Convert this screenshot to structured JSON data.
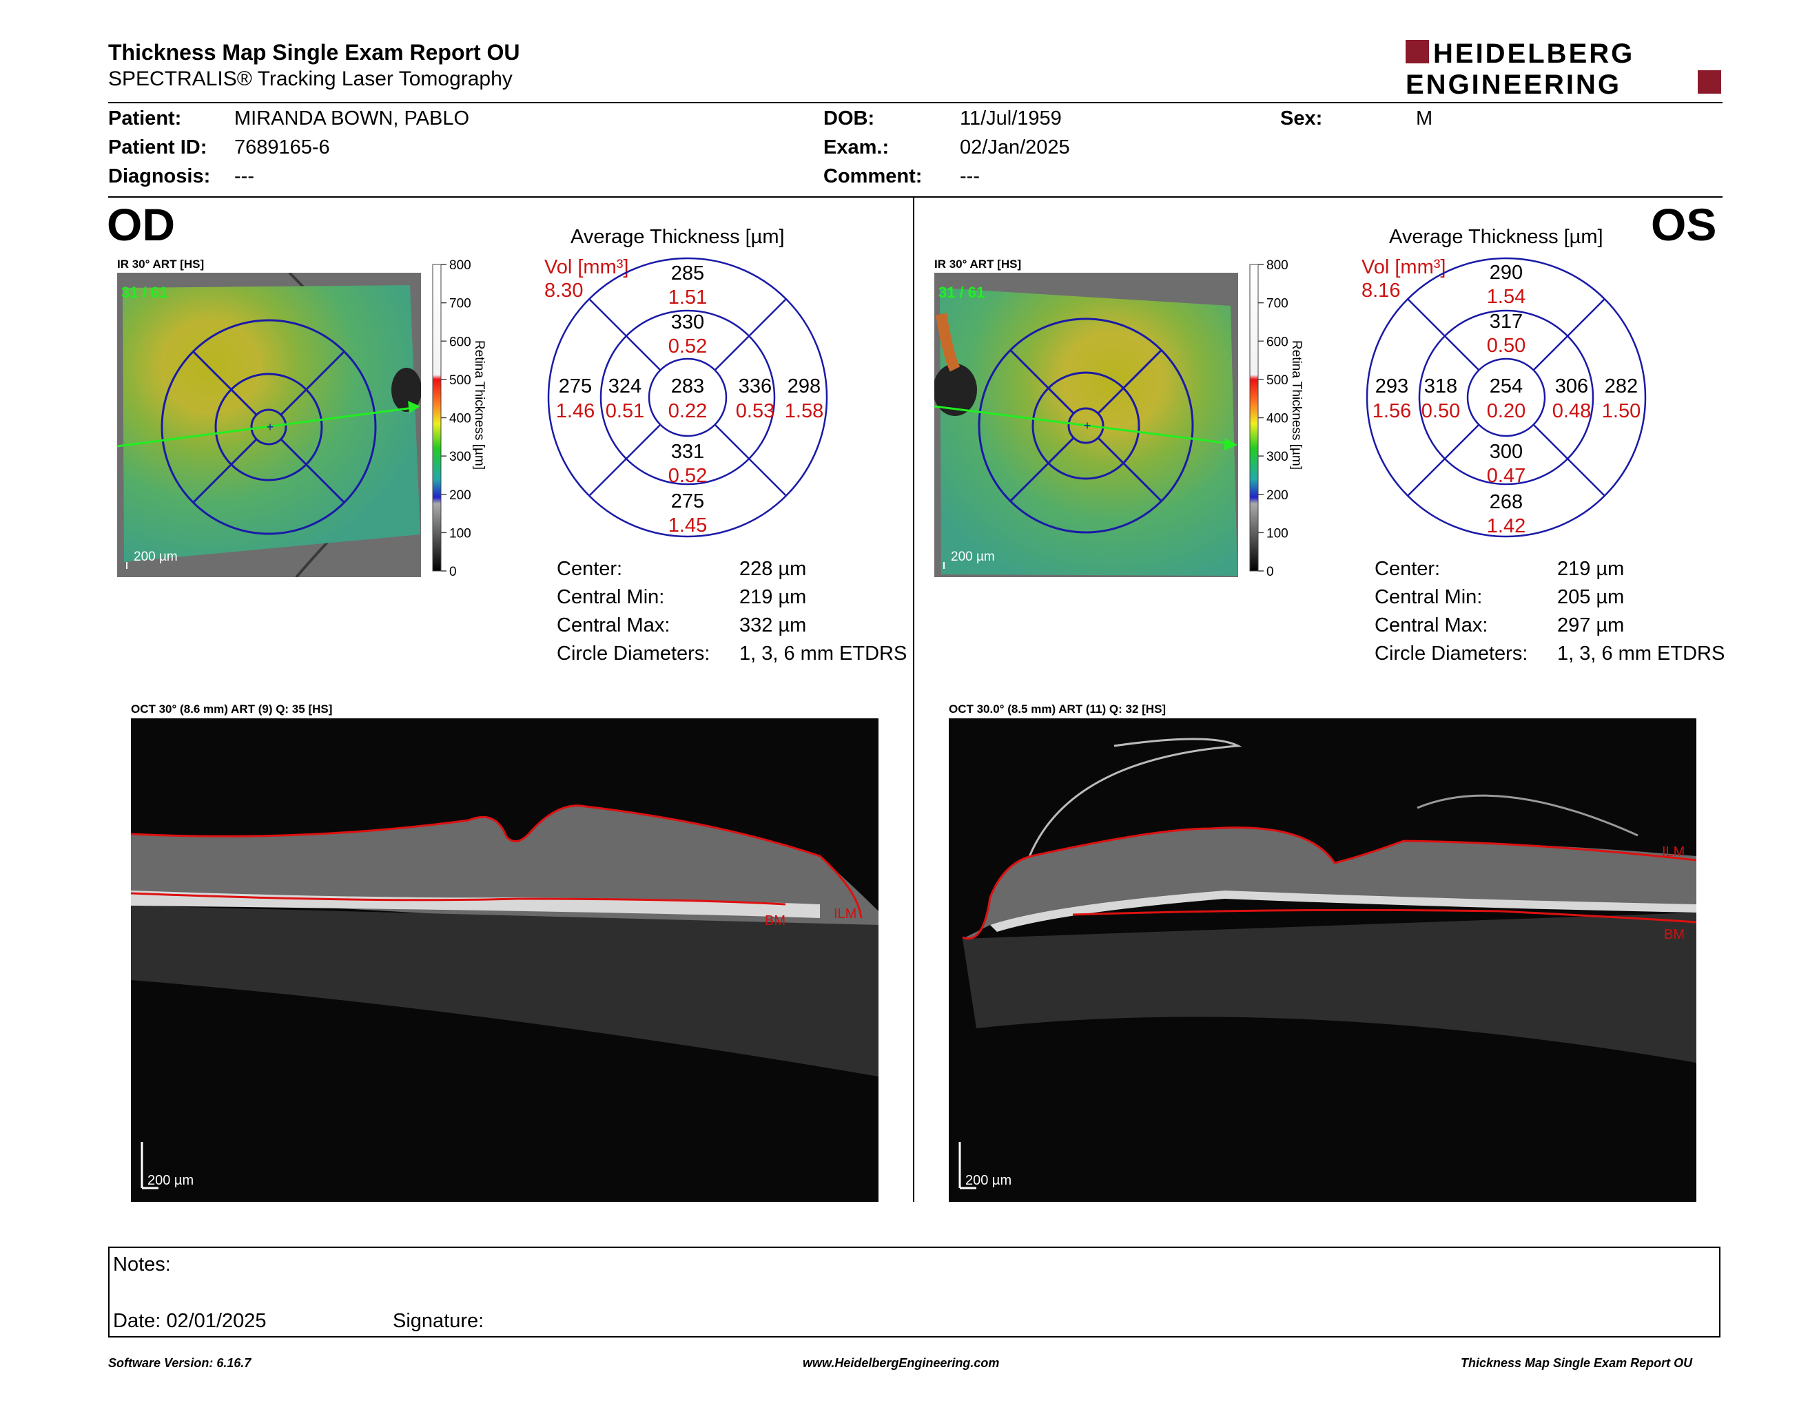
{
  "header": {
    "title": "Thickness Map Single Exam Report OU",
    "subtitle": "SPECTRALIS® Tracking Laser Tomography",
    "logo_line1": "HEIDELBERG",
    "logo_line2": "ENGINEERING"
  },
  "patient": {
    "patient_label": "Patient:",
    "patient_value": "MIRANDA BOWN, PABLO",
    "id_label": "Patient ID:",
    "id_value": "7689165-6",
    "diag_label": "Diagnosis:",
    "diag_value": "---",
    "dob_label": "DOB:",
    "dob_value": "11/Jul/1959",
    "exam_label": "Exam.:",
    "exam_value": "02/Jan/2025",
    "comment_label": "Comment:",
    "comment_value": "---",
    "sex_label": "Sex:",
    "sex_value": "M"
  },
  "scale_ticks": [
    "800",
    "700",
    "600",
    "500",
    "400",
    "300",
    "200",
    "100",
    "0"
  ],
  "scale_title": "Retina Thickness [µm]",
  "od": {
    "eye": "OD",
    "ir_label": "IR 30° ART [HS]",
    "frame": "31 / 61",
    "scalebar": "200 µm",
    "avg_title": "Average Thickness [µm]",
    "vol_label": "Vol [mm³]",
    "vol_total": "8.30",
    "sectors": {
      "outer_top": {
        "t": "285",
        "v": "1.51"
      },
      "inner_top": {
        "t": "330",
        "v": "0.52"
      },
      "outer_left": {
        "t": "275",
        "v": "1.46"
      },
      "inner_left": {
        "t": "324",
        "v": "0.51"
      },
      "center": {
        "t": "283",
        "v": "0.22"
      },
      "inner_right": {
        "t": "336",
        "v": "0.53"
      },
      "outer_right": {
        "t": "298",
        "v": "1.58"
      },
      "inner_bottom": {
        "t": "331",
        "v": "0.52"
      },
      "outer_bottom": {
        "t": "275",
        "v": "1.45"
      }
    },
    "stats": [
      {
        "k": "Center:",
        "v": "228 µm"
      },
      {
        "k": "Central Min:",
        "v": "219 µm"
      },
      {
        "k": "Central Max:",
        "v": "332 µm"
      },
      {
        "k": "Circle Diameters:",
        "v": "1, 3, 6 mm ETDRS"
      }
    ],
    "oct_label": "OCT 30° (8.6 mm) ART (9) Q: 35 [HS]",
    "ilm": "ILM",
    "bm": "BM",
    "oct_scalebar": "200 µm"
  },
  "os": {
    "eye": "OS",
    "ir_label": "IR 30° ART [HS]",
    "frame": "31 / 61",
    "scalebar": "200 µm",
    "avg_title": "Average Thickness [µm]",
    "vol_label": "Vol [mm³]",
    "vol_total": "8.16",
    "sectors": {
      "outer_top": {
        "t": "290",
        "v": "1.54"
      },
      "inner_top": {
        "t": "317",
        "v": "0.50"
      },
      "outer_left": {
        "t": "293",
        "v": "1.56"
      },
      "inner_left": {
        "t": "318",
        "v": "0.50"
      },
      "center": {
        "t": "254",
        "v": "0.20"
      },
      "inner_right": {
        "t": "306",
        "v": "0.48"
      },
      "outer_right": {
        "t": "282",
        "v": "1.50"
      },
      "inner_bottom": {
        "t": "300",
        "v": "0.47"
      },
      "outer_bottom": {
        "t": "268",
        "v": "1.42"
      }
    },
    "stats": [
      {
        "k": "Center:",
        "v": "219 µm"
      },
      {
        "k": "Central Min:",
        "v": "205 µm"
      },
      {
        "k": "Central Max:",
        "v": "297 µm"
      },
      {
        "k": "Circle Diameters:",
        "v": "1, 3, 6 mm ETDRS"
      }
    ],
    "oct_label": "OCT 30.0° (8.5 mm) ART (11) Q: 32 [HS]",
    "ilm": "ILM",
    "bm": "BM",
    "oct_scalebar": "200 µm"
  },
  "notes": {
    "notes_label": "Notes:",
    "date_label": "Date: 02/01/2025",
    "signature_label": "Signature:"
  },
  "footer": {
    "version": "Software Version: 6.16.7",
    "url": "www.HeidelbergEngineering.com",
    "report": "Thickness Map Single Exam Report OU"
  },
  "colors": {
    "accent_red": "#cc1111",
    "grid_blue": "#1a1aa8",
    "logo_red": "#8b1a2b"
  }
}
